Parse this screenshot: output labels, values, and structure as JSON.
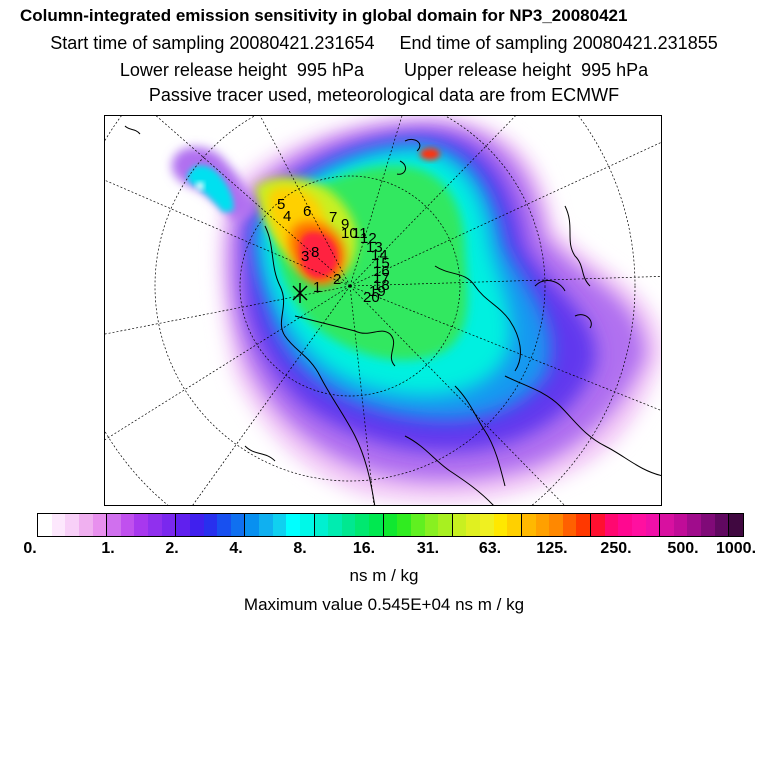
{
  "header": {
    "title": "Column-integrated emission sensitivity in global domain for NP3_20080421",
    "sampling": "Start time of sampling 20080421.231654     End time of sampling 20080421.231855",
    "release": "Lower release height  995 hPa        Upper release height  995 hPa",
    "tracer": "Passive tracer used, meteorological data are from ECMWF"
  },
  "map": {
    "projection": "north polar stereographic",
    "release_marker": "release-point-star",
    "trajectory_labels": [
      "1",
      "2",
      "3",
      "4",
      "5",
      "6",
      "7",
      "8",
      "9",
      "10",
      "11",
      "12",
      "13",
      "14",
      "15",
      "16",
      "17",
      "18",
      "19",
      "20"
    ]
  },
  "colorbar": {
    "colors": [
      "#ffffff",
      "#fde8fd",
      "#f8d0f8",
      "#f0b0f0",
      "#e890ee",
      "#d070ee",
      "#c050ee",
      "#a838ee",
      "#9030ee",
      "#7a28ee",
      "#6020ee",
      "#4020ee",
      "#2830ee",
      "#1850f0",
      "#1070f0",
      "#0890f0",
      "#10b0f0",
      "#10d0f0",
      "#00ffff",
      "#00f8e8",
      "#00f0d0",
      "#00ecb0",
      "#00e890",
      "#00e870",
      "#00e850",
      "#10e830",
      "#30ec20",
      "#60f020",
      "#88f020",
      "#a8f020",
      "#c8f020",
      "#e0f020",
      "#f0f020",
      "#ffe800",
      "#ffd000",
      "#ffb800",
      "#ffa000",
      "#ff8800",
      "#ff6000",
      "#ff3800",
      "#ff1030",
      "#ff0870",
      "#ff0890",
      "#ff10a0",
      "#f010a8",
      "#d810a0",
      "#c00c98",
      "#a00c8c",
      "#800a78",
      "#600860",
      "#400840"
    ],
    "tick_labels": [
      "0.",
      "1.",
      "2.",
      "4.",
      "8.",
      "16.",
      "31.",
      "63.",
      "125.",
      "250.",
      "500.",
      "1000."
    ],
    "units": "ns m / kg"
  },
  "footer": {
    "maximum": "Maximum value  0.545E+04 ns m / kg"
  }
}
